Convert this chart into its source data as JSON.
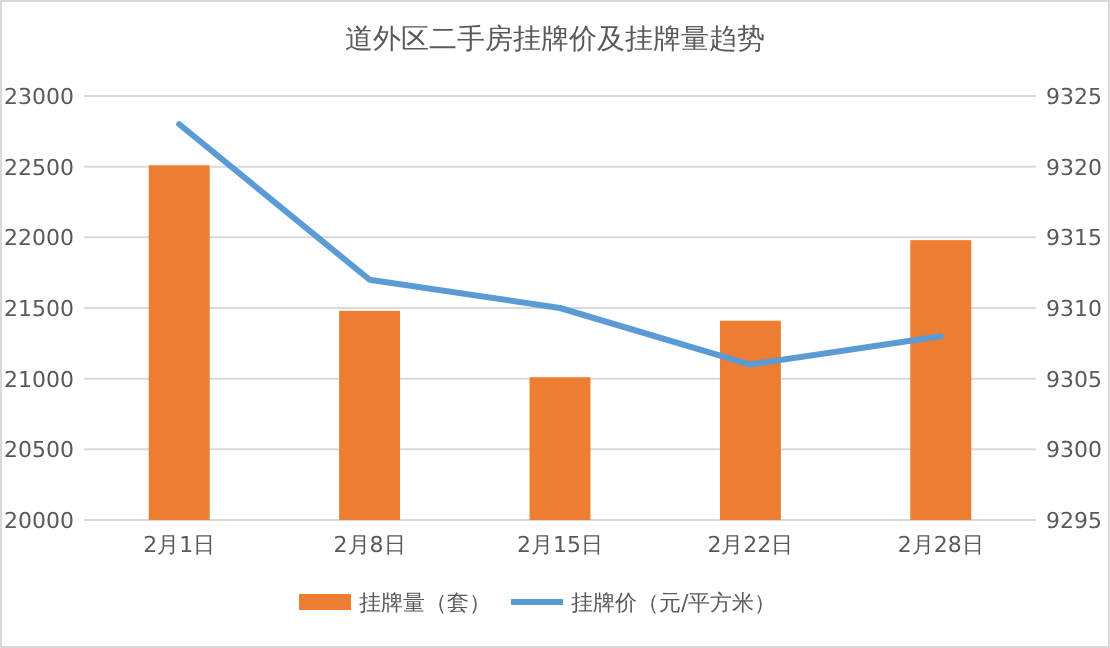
{
  "chart_data": {
    "type": "bar",
    "title": "道外区二手房挂牌价及挂牌量趋势",
    "categories": [
      "2月1日",
      "2月8日",
      "2月15日",
      "2月22日",
      "2月28日"
    ],
    "series": [
      {
        "name": "挂牌量（套）",
        "color": "#ed7d31",
        "values": [
          22510,
          21480,
          21010,
          21410,
          21980
        ]
      },
      {
        "name": "挂牌价（元/平方米）",
        "type": "line",
        "axis": "y2",
        "color": "#5b9bd5",
        "values": [
          9323,
          9312,
          9310,
          9306,
          9308
        ]
      }
    ],
    "ylim": [
      20000,
      23000
    ],
    "yticks": [
      20000,
      20500,
      21000,
      21500,
      22000,
      22500,
      23000
    ],
    "y2lim": [
      9295,
      9325
    ],
    "y2ticks": [
      9295,
      9300,
      9305,
      9310,
      9315,
      9320,
      9325
    ],
    "grid": "y",
    "legend": "bottom",
    "line_style": "solid",
    "marker": "none"
  }
}
